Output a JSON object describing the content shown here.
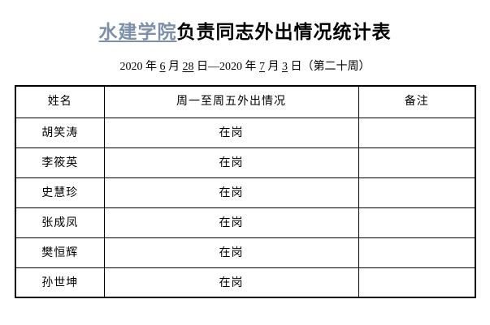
{
  "title": {
    "link_part": "水建学院",
    "rest": "负责同志外出情况统计表"
  },
  "subtitle": {
    "p1": "2020 年 ",
    "n1": "6",
    "p2": " 月 ",
    "n2": "28",
    "p3": " 日—2020 年 ",
    "n3": "7",
    "p4": " 月 ",
    "n4": "3",
    "p5": " 日（第二十周）"
  },
  "colors": {
    "title_link": "#7d8fa9",
    "border": "#000000",
    "text": "#000000",
    "background": "#ffffff"
  },
  "table": {
    "headers": [
      "姓名",
      "周一至周五外出情况",
      "备注"
    ],
    "rows": [
      {
        "name": "胡笑涛",
        "status": "在岗",
        "note": ""
      },
      {
        "name": "李筱英",
        "status": "在岗",
        "note": ""
      },
      {
        "name": "史慧珍",
        "status": "在岗",
        "note": ""
      },
      {
        "name": "张成凤",
        "status": "在岗",
        "note": ""
      },
      {
        "name": "樊恒辉",
        "status": "在岗",
        "note": ""
      },
      {
        "name": "孙世坤",
        "status": "在岗",
        "note": ""
      }
    ]
  }
}
